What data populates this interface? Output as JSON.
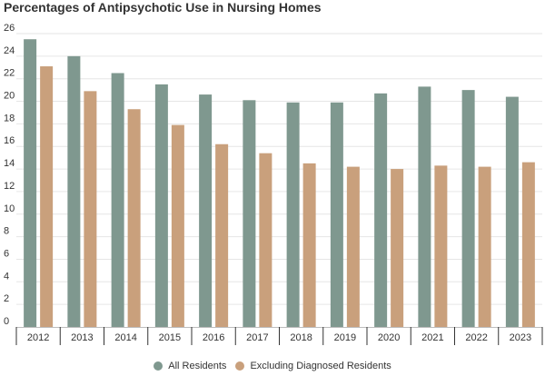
{
  "chart_data": {
    "type": "bar",
    "title": "Percentages of Antipsychotic Use in Nursing Homes",
    "categories": [
      "2012",
      "2013",
      "2014",
      "2015",
      "2016",
      "2017",
      "2018",
      "2019",
      "2020",
      "2021",
      "2022",
      "2023"
    ],
    "series": [
      {
        "name": "All Residents",
        "color": "#7f988f",
        "values": [
          25.5,
          24.0,
          22.5,
          21.5,
          20.6,
          20.1,
          19.9,
          19.9,
          20.7,
          21.3,
          21.0,
          20.4
        ]
      },
      {
        "name": "Excluding Diagnosed Residents",
        "color": "#c9a07c",
        "values": [
          23.1,
          20.9,
          19.3,
          17.9,
          16.2,
          15.4,
          14.5,
          14.2,
          14.0,
          14.3,
          14.2,
          14.6
        ]
      }
    ],
    "ylim": [
      0,
      26
    ],
    "yticks": [
      0,
      2,
      4,
      6,
      8,
      10,
      12,
      14,
      16,
      18,
      20,
      22,
      24,
      26
    ],
    "grid": true,
    "legend_position": "bottom-center"
  }
}
